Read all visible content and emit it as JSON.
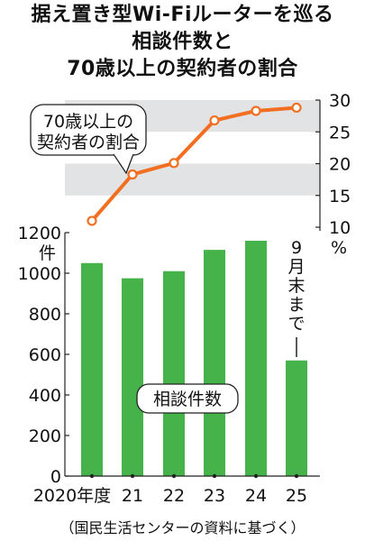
{
  "title_lines": [
    "据え置き型Wi-Fiルーターを巡る",
    "相談件数と",
    "70歳以上の契約者の割合"
  ],
  "source": "（国民生活センターの資料に基づく）",
  "colors": {
    "bar": "#45b34a",
    "line": "#f26f21",
    "band": "#e2e3e5",
    "axis": "#222222"
  },
  "chart_data": [
    {
      "type": "bar",
      "categories": [
        "2020年度",
        "21",
        "22",
        "23",
        "24",
        "25"
      ],
      "values": [
        1050,
        975,
        1010,
        1115,
        1160,
        570
      ],
      "ylim": [
        0,
        1200
      ],
      "yticks": [
        0,
        200,
        400,
        600,
        800,
        1000,
        1200
      ],
      "ylabel": "件",
      "series_label": "相談件数",
      "annotation": "9月末まで"
    },
    {
      "type": "line",
      "categories": [
        "2020年度",
        "21",
        "22",
        "23",
        "24",
        "25"
      ],
      "values": [
        11,
        18.3,
        20.1,
        26.8,
        28.3,
        28.8
      ],
      "ylim": [
        10,
        30
      ],
      "yticks": [
        10,
        15,
        20,
        25,
        30
      ],
      "ylabel": "%",
      "series_label": "70歳以上の契約者の割合",
      "callout": [
        "70歳以上の",
        "契約者の割合"
      ]
    }
  ]
}
